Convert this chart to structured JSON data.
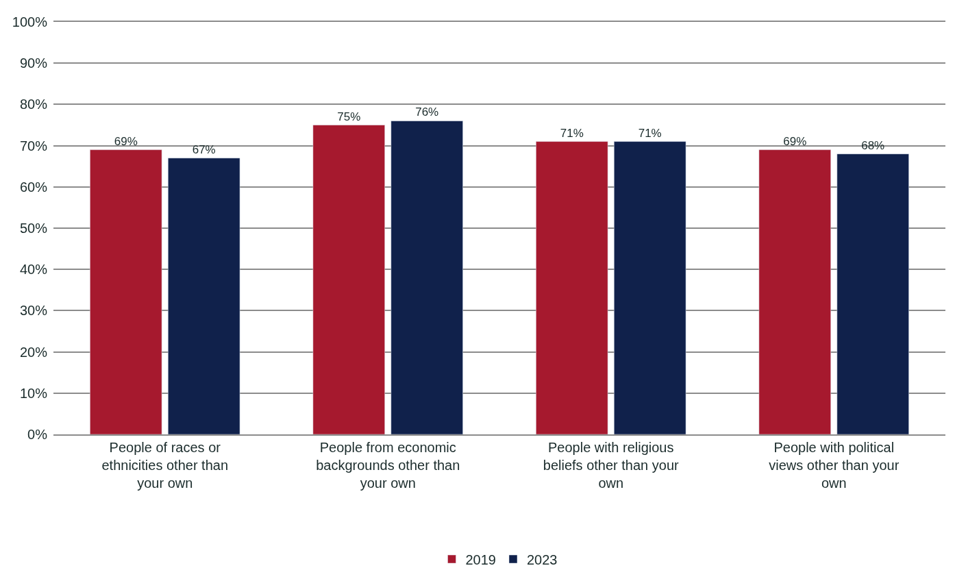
{
  "chart_data": {
    "type": "bar",
    "categories": [
      "People of races or ethnicities other than your own",
      "People from economic backgrounds other than your own",
      "People with religious beliefs other than your own",
      "People with political views other than your own"
    ],
    "series": [
      {
        "name": "2019",
        "color": "#a6192e",
        "values": [
          69,
          75,
          71,
          69
        ],
        "value_labels": [
          "69%",
          "75%",
          "71%",
          "69%"
        ]
      },
      {
        "name": "2023",
        "color": "#10214b",
        "values": [
          67,
          76,
          71,
          68
        ],
        "value_labels": [
          "67%",
          "76%",
          "71%",
          "68%"
        ]
      }
    ],
    "ylim": [
      0,
      100
    ],
    "yticks": [
      {
        "value": 0,
        "label": "0%"
      },
      {
        "value": 10,
        "label": "10%"
      },
      {
        "value": 20,
        "label": "20%"
      },
      {
        "value": 30,
        "label": "30%"
      },
      {
        "value": 40,
        "label": "40%"
      },
      {
        "value": 50,
        "label": "50%"
      },
      {
        "value": 60,
        "label": "60%"
      },
      {
        "value": 70,
        "label": "70%"
      },
      {
        "value": 80,
        "label": "80%"
      },
      {
        "value": 90,
        "label": "90%"
      },
      {
        "value": 100,
        "label": "100%"
      }
    ],
    "grid": "y",
    "legend": "bottom"
  }
}
